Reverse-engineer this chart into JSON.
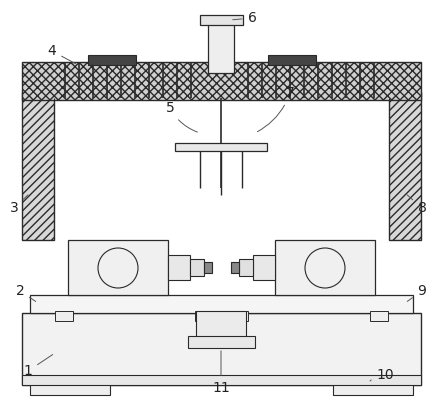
{
  "bg_color": "#ffffff",
  "line_color": "#2a2a2a",
  "label_color": "#222222",
  "label_fontsize": 10,
  "lw": 0.8
}
